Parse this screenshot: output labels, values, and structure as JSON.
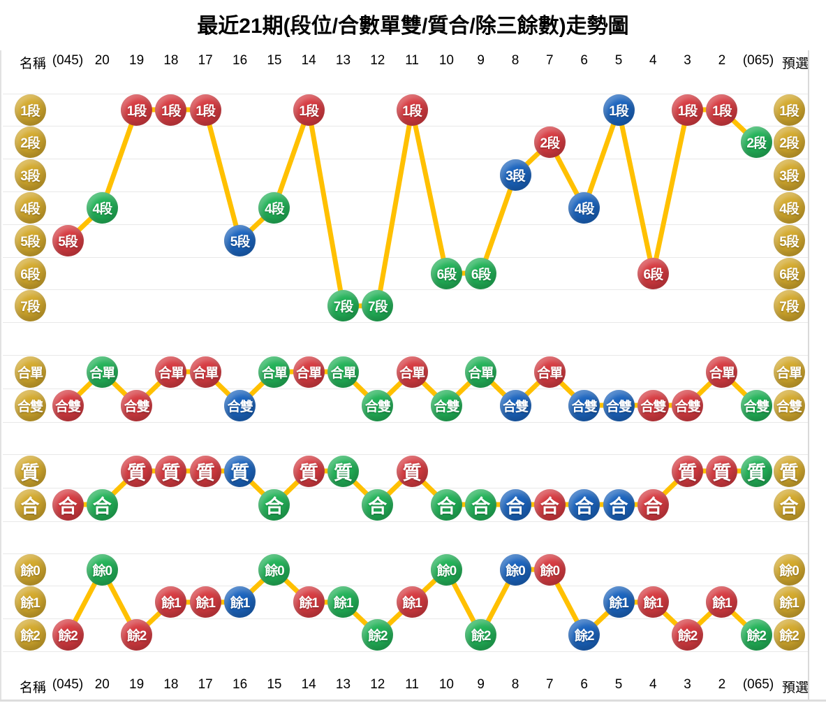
{
  "title": "最近21期(段位/合數單雙/質合/除三餘數)走勢圖",
  "header": {
    "name_label": "名稱",
    "first_period": "(045)",
    "periods": [
      "20",
      "19",
      "18",
      "17",
      "16",
      "15",
      "14",
      "13",
      "12",
      "11",
      "10",
      "9",
      "8",
      "7",
      "6",
      "5",
      "4",
      "3",
      "2"
    ],
    "last_period": "(065)",
    "preselect_label": "預選"
  },
  "colors": {
    "red": "#d63b41",
    "green": "#22b258",
    "blue": "#1b64be",
    "yellow": "#d3a92d",
    "line": "#ffc000",
    "gridline": "#e8e8e8"
  },
  "chart_data": {
    "type": "line",
    "legend_position": "none",
    "grid": true,
    "columns": [
      "(045)",
      "20",
      "19",
      "18",
      "17",
      "16",
      "15",
      "14",
      "13",
      "12",
      "11",
      "10",
      "9",
      "8",
      "7",
      "6",
      "5",
      "4",
      "3",
      "2",
      "(065)"
    ],
    "sections": [
      {
        "name": "段位",
        "rows": [
          "1段",
          "2段",
          "3段",
          "4段",
          "5段",
          "6段",
          "7段"
        ],
        "points": [
          {
            "col": "(045)",
            "value": "5段",
            "row": 4,
            "color": "red"
          },
          {
            "col": "20",
            "value": "4段",
            "row": 3,
            "color": "green"
          },
          {
            "col": "19",
            "value": "1段",
            "row": 0,
            "color": "red"
          },
          {
            "col": "18",
            "value": "1段",
            "row": 0,
            "color": "red"
          },
          {
            "col": "17",
            "value": "1段",
            "row": 0,
            "color": "red"
          },
          {
            "col": "16",
            "value": "5段",
            "row": 4,
            "color": "blue"
          },
          {
            "col": "15",
            "value": "4段",
            "row": 3,
            "color": "green"
          },
          {
            "col": "14",
            "value": "1段",
            "row": 0,
            "color": "red"
          },
          {
            "col": "13",
            "value": "7段",
            "row": 6,
            "color": "green"
          },
          {
            "col": "12",
            "value": "7段",
            "row": 6,
            "color": "green"
          },
          {
            "col": "11",
            "value": "1段",
            "row": 0,
            "color": "red"
          },
          {
            "col": "10",
            "value": "6段",
            "row": 5,
            "color": "green"
          },
          {
            "col": "9",
            "value": "6段",
            "row": 5,
            "color": "green"
          },
          {
            "col": "8",
            "value": "3段",
            "row": 2,
            "color": "blue"
          },
          {
            "col": "7",
            "value": "2段",
            "row": 1,
            "color": "red"
          },
          {
            "col": "6",
            "value": "4段",
            "row": 3,
            "color": "blue"
          },
          {
            "col": "5",
            "value": "1段",
            "row": 0,
            "color": "blue"
          },
          {
            "col": "4",
            "value": "6段",
            "row": 5,
            "color": "red"
          },
          {
            "col": "3",
            "value": "1段",
            "row": 0,
            "color": "red"
          },
          {
            "col": "2",
            "value": "1段",
            "row": 0,
            "color": "red"
          },
          {
            "col": "(065)",
            "value": "2段",
            "row": 1,
            "color": "green"
          }
        ]
      },
      {
        "name": "合數單雙",
        "rows": [
          "合單",
          "合雙"
        ],
        "points": [
          {
            "col": "(045)",
            "value": "合雙",
            "row": 1,
            "color": "red"
          },
          {
            "col": "20",
            "value": "合單",
            "row": 0,
            "color": "green"
          },
          {
            "col": "19",
            "value": "合雙",
            "row": 1,
            "color": "red"
          },
          {
            "col": "18",
            "value": "合單",
            "row": 0,
            "color": "red"
          },
          {
            "col": "17",
            "value": "合單",
            "row": 0,
            "color": "red"
          },
          {
            "col": "16",
            "value": "合雙",
            "row": 1,
            "color": "blue"
          },
          {
            "col": "15",
            "value": "合單",
            "row": 0,
            "color": "green"
          },
          {
            "col": "14",
            "value": "合單",
            "row": 0,
            "color": "red"
          },
          {
            "col": "13",
            "value": "合單",
            "row": 0,
            "color": "green"
          },
          {
            "col": "12",
            "value": "合雙",
            "row": 1,
            "color": "green"
          },
          {
            "col": "11",
            "value": "合單",
            "row": 0,
            "color": "red"
          },
          {
            "col": "10",
            "value": "合雙",
            "row": 1,
            "color": "green"
          },
          {
            "col": "9",
            "value": "合單",
            "row": 0,
            "color": "green"
          },
          {
            "col": "8",
            "value": "合雙",
            "row": 1,
            "color": "blue"
          },
          {
            "col": "7",
            "value": "合單",
            "row": 0,
            "color": "red"
          },
          {
            "col": "6",
            "value": "合雙",
            "row": 1,
            "color": "blue"
          },
          {
            "col": "5",
            "value": "合雙",
            "row": 1,
            "color": "blue"
          },
          {
            "col": "4",
            "value": "合雙",
            "row": 1,
            "color": "red"
          },
          {
            "col": "3",
            "value": "合雙",
            "row": 1,
            "color": "red"
          },
          {
            "col": "2",
            "value": "合單",
            "row": 0,
            "color": "red"
          },
          {
            "col": "(065)",
            "value": "合雙",
            "row": 1,
            "color": "green"
          }
        ]
      },
      {
        "name": "質合",
        "rows": [
          "質",
          "合"
        ],
        "points": [
          {
            "col": "(045)",
            "value": "合",
            "row": 1,
            "color": "red"
          },
          {
            "col": "20",
            "value": "合",
            "row": 1,
            "color": "green"
          },
          {
            "col": "19",
            "value": "質",
            "row": 0,
            "color": "red"
          },
          {
            "col": "18",
            "value": "質",
            "row": 0,
            "color": "red"
          },
          {
            "col": "17",
            "value": "質",
            "row": 0,
            "color": "red"
          },
          {
            "col": "16",
            "value": "質",
            "row": 0,
            "color": "blue"
          },
          {
            "col": "15",
            "value": "合",
            "row": 1,
            "color": "green"
          },
          {
            "col": "14",
            "value": "質",
            "row": 0,
            "color": "red"
          },
          {
            "col": "13",
            "value": "質",
            "row": 0,
            "color": "green"
          },
          {
            "col": "12",
            "value": "合",
            "row": 1,
            "color": "green"
          },
          {
            "col": "11",
            "value": "質",
            "row": 0,
            "color": "red"
          },
          {
            "col": "10",
            "value": "合",
            "row": 1,
            "color": "green"
          },
          {
            "col": "9",
            "value": "合",
            "row": 1,
            "color": "green"
          },
          {
            "col": "8",
            "value": "合",
            "row": 1,
            "color": "blue"
          },
          {
            "col": "7",
            "value": "合",
            "row": 1,
            "color": "red"
          },
          {
            "col": "6",
            "value": "合",
            "row": 1,
            "color": "blue"
          },
          {
            "col": "5",
            "value": "合",
            "row": 1,
            "color": "blue"
          },
          {
            "col": "4",
            "value": "合",
            "row": 1,
            "color": "red"
          },
          {
            "col": "3",
            "value": "質",
            "row": 0,
            "color": "red"
          },
          {
            "col": "2",
            "value": "質",
            "row": 0,
            "color": "red"
          },
          {
            "col": "(065)",
            "value": "質",
            "row": 0,
            "color": "green"
          }
        ]
      },
      {
        "name": "除三餘數",
        "rows": [
          "餘0",
          "餘1",
          "餘2"
        ],
        "points": [
          {
            "col": "(045)",
            "value": "餘2",
            "row": 2,
            "color": "red"
          },
          {
            "col": "20",
            "value": "餘0",
            "row": 0,
            "color": "green"
          },
          {
            "col": "19",
            "value": "餘2",
            "row": 2,
            "color": "red"
          },
          {
            "col": "18",
            "value": "餘1",
            "row": 1,
            "color": "red"
          },
          {
            "col": "17",
            "value": "餘1",
            "row": 1,
            "color": "red"
          },
          {
            "col": "16",
            "value": "餘1",
            "row": 1,
            "color": "blue"
          },
          {
            "col": "15",
            "value": "餘0",
            "row": 0,
            "color": "green"
          },
          {
            "col": "14",
            "value": "餘1",
            "row": 1,
            "color": "red"
          },
          {
            "col": "13",
            "value": "餘1",
            "row": 1,
            "color": "green"
          },
          {
            "col": "12",
            "value": "餘2",
            "row": 2,
            "color": "green"
          },
          {
            "col": "11",
            "value": "餘1",
            "row": 1,
            "color": "red"
          },
          {
            "col": "10",
            "value": "餘0",
            "row": 0,
            "color": "green"
          },
          {
            "col": "9",
            "value": "餘2",
            "row": 2,
            "color": "green"
          },
          {
            "col": "8",
            "value": "餘0",
            "row": 0,
            "color": "blue"
          },
          {
            "col": "7",
            "value": "餘0",
            "row": 0,
            "color": "red"
          },
          {
            "col": "6",
            "value": "餘2",
            "row": 2,
            "color": "blue"
          },
          {
            "col": "5",
            "value": "餘1",
            "row": 1,
            "color": "blue"
          },
          {
            "col": "4",
            "value": "餘1",
            "row": 1,
            "color": "red"
          },
          {
            "col": "3",
            "value": "餘2",
            "row": 2,
            "color": "red"
          },
          {
            "col": "2",
            "value": "餘1",
            "row": 1,
            "color": "red"
          },
          {
            "col": "(065)",
            "value": "餘2",
            "row": 2,
            "color": "green"
          }
        ]
      }
    ]
  }
}
